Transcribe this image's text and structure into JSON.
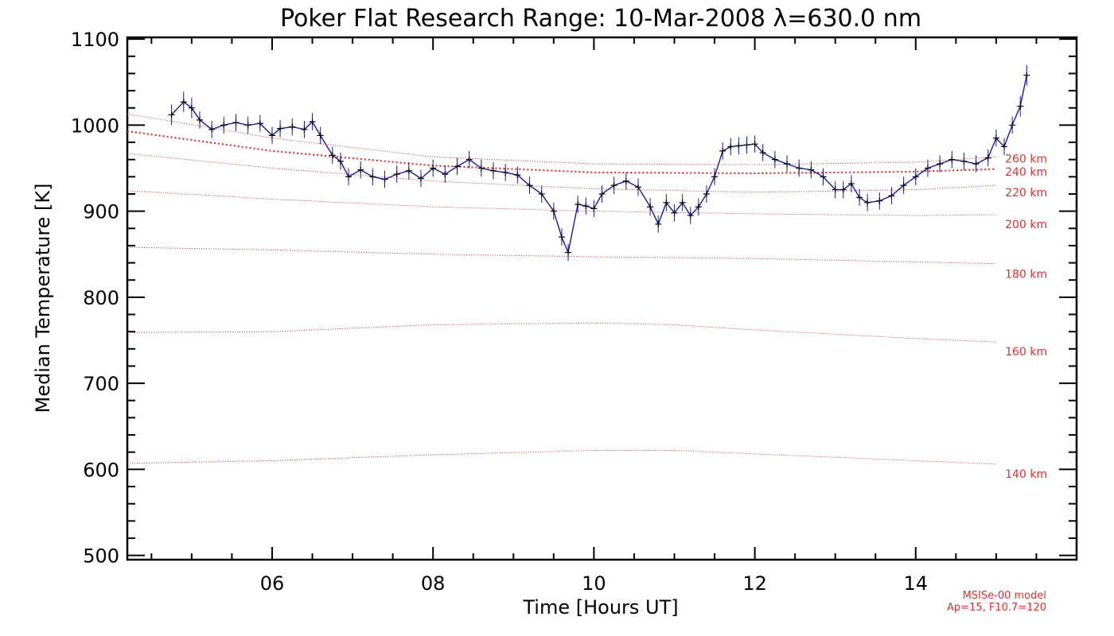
{
  "chart_data": {
    "type": "line",
    "title": "Poker Flat Research Range: 10-Mar-2008 λ=630.0 nm",
    "xlabel": "Time [Hours UT]",
    "ylabel": "Median Temperature [K]",
    "xlim": [
      4.2,
      16.0
    ],
    "ylim": [
      495,
      1102
    ],
    "xticks": [
      {
        "value": 6,
        "label": "06"
      },
      {
        "value": 8,
        "label": "08"
      },
      {
        "value": 10,
        "label": "10"
      },
      {
        "value": 12,
        "label": "12"
      },
      {
        "value": 14,
        "label": "14"
      }
    ],
    "yticks": [
      {
        "value": 500,
        "label": "500"
      },
      {
        "value": 600,
        "label": "600"
      },
      {
        "value": 700,
        "label": "700"
      },
      {
        "value": 800,
        "label": "800"
      },
      {
        "value": 900,
        "label": "900"
      },
      {
        "value": 1000,
        "label": "1000"
      },
      {
        "value": 1100,
        "label": "1100"
      }
    ],
    "grid": false,
    "colors": {
      "measurement": "#1a1aa0",
      "marker": "#000000",
      "model": "#e03030"
    },
    "series": [
      {
        "kind": "measurement",
        "x": [
          4.75,
          4.9,
          5.0,
          5.1,
          5.25,
          5.4,
          5.55,
          5.7,
          5.85,
          6.0,
          6.1,
          6.25,
          6.4,
          6.5,
          6.6,
          6.75,
          6.85,
          6.95,
          7.1,
          7.25,
          7.4,
          7.55,
          7.7,
          7.85,
          8.0,
          8.15,
          8.3,
          8.45,
          8.6,
          8.75,
          8.9,
          9.05,
          9.2,
          9.35,
          9.5,
          9.6,
          9.68,
          9.8,
          9.9,
          10.0,
          10.1,
          10.25,
          10.4,
          10.55,
          10.7,
          10.8,
          10.9,
          11.0,
          11.1,
          11.2,
          11.3,
          11.4,
          11.5,
          11.6,
          11.7,
          11.8,
          11.9,
          12.0,
          12.1,
          12.25,
          12.4,
          12.55,
          12.7,
          12.85,
          13.0,
          13.1,
          13.2,
          13.3,
          13.4,
          13.55,
          13.7,
          13.85,
          14.0,
          14.15,
          14.3,
          14.45,
          14.6,
          14.75,
          14.9,
          15.0,
          15.1,
          15.2,
          15.3,
          15.38
        ],
        "y": [
          1012,
          1027,
          1020,
          1006,
          995,
          1000,
          1003,
          1000,
          1002,
          988,
          996,
          998,
          995,
          1004,
          988,
          965,
          958,
          940,
          948,
          940,
          937,
          943,
          947,
          938,
          950,
          943,
          952,
          960,
          950,
          947,
          945,
          942,
          930,
          920,
          900,
          870,
          852,
          908,
          906,
          903,
          920,
          930,
          935,
          928,
          905,
          885,
          910,
          898,
          910,
          895,
          905,
          920,
          940,
          970,
          975,
          976,
          977,
          978,
          968,
          960,
          955,
          950,
          948,
          940,
          925,
          925,
          932,
          916,
          910,
          912,
          918,
          930,
          940,
          950,
          955,
          960,
          958,
          955,
          962,
          985,
          975,
          1000,
          1022,
          1058
        ],
        "err": [
          12,
          12,
          12,
          10,
          10,
          10,
          10,
          10,
          10,
          10,
          10,
          10,
          10,
          10,
          10,
          10,
          10,
          10,
          10,
          10,
          10,
          10,
          10,
          10,
          10,
          10,
          10,
          10,
          10,
          10,
          10,
          10,
          10,
          10,
          10,
          10,
          10,
          10,
          10,
          10,
          10,
          10,
          10,
          10,
          10,
          10,
          10,
          10,
          10,
          10,
          10,
          10,
          10,
          10,
          10,
          10,
          10,
          10,
          10,
          10,
          10,
          10,
          10,
          10,
          10,
          10,
          10,
          10,
          10,
          10,
          10,
          10,
          10,
          10,
          10,
          10,
          10,
          10,
          10,
          10,
          10,
          10,
          12,
          12
        ]
      },
      {
        "kind": "model",
        "name": "140 km",
        "x": [
          4.2,
          6.0,
          8.0,
          10.0,
          11.0,
          12.0,
          14.0,
          15.0
        ],
        "y": [
          607,
          610,
          617,
          622,
          622,
          618,
          610,
          606
        ]
      },
      {
        "kind": "model",
        "name": "160 km",
        "x": [
          4.2,
          6.0,
          8.0,
          10.0,
          11.0,
          12.0,
          14.0,
          15.0
        ],
        "y": [
          759,
          760,
          768,
          770,
          768,
          762,
          752,
          748
        ]
      },
      {
        "kind": "model",
        "name": "180 km",
        "x": [
          4.2,
          6.0,
          8.0,
          10.0,
          12.0,
          14.0,
          15.0
        ],
        "y": [
          858,
          855,
          850,
          847,
          845,
          841,
          839
        ]
      },
      {
        "kind": "model",
        "name": "200 km",
        "x": [
          4.2,
          6.0,
          8.0,
          10.0,
          12.0,
          14.0,
          15.0
        ],
        "y": [
          924,
          914,
          905,
          900,
          897,
          895,
          896
        ]
      },
      {
        "kind": "model",
        "name": "220 km",
        "x": [
          4.2,
          6.0,
          8.0,
          10.0,
          12.0,
          14.0,
          15.0
        ],
        "y": [
          967,
          950,
          935,
          926,
          922,
          925,
          930
        ]
      },
      {
        "kind": "model",
        "name": "240 km",
        "x": [
          4.2,
          6.0,
          8.0,
          10.0,
          12.0,
          14.0,
          15.0
        ],
        "y": [
          993,
          970,
          953,
          945,
          944,
          946,
          949
        ]
      },
      {
        "kind": "model",
        "name": "260 km",
        "x": [
          4.2,
          6.0,
          8.0,
          10.0,
          12.0,
          14.0,
          15.0
        ],
        "y": [
          1013,
          985,
          963,
          955,
          954,
          957,
          963
        ]
      }
    ],
    "altitude_labels": [
      {
        "name": "260 km",
        "y": 961
      },
      {
        "name": "240 km",
        "y": 946
      },
      {
        "name": "220 km",
        "y": 922
      },
      {
        "name": "200 km",
        "y": 885
      },
      {
        "name": "180 km",
        "y": 827
      },
      {
        "name": "160 km",
        "y": 737
      },
      {
        "name": "140 km",
        "y": 595
      }
    ],
    "annotation": [
      "MSISe-00 model",
      "Ap=15, F10.7=120"
    ]
  }
}
